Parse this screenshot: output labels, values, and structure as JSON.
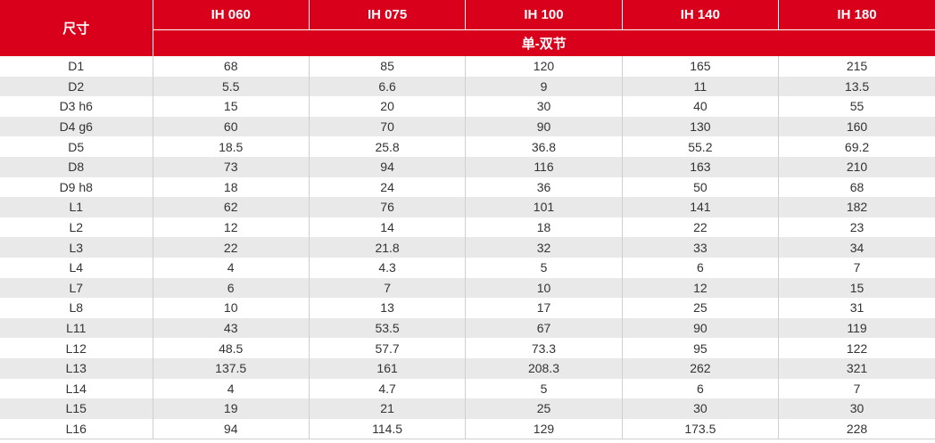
{
  "table": {
    "corner_label": "尺寸",
    "models": [
      "IH 060",
      "IH 075",
      "IH 100",
      "IH 140",
      "IH 180"
    ],
    "subheader": "单-双节",
    "rows": [
      {
        "label": "D1",
        "values": [
          "68",
          "85",
          "120",
          "165",
          "215"
        ]
      },
      {
        "label": "D2",
        "values": [
          "5.5",
          "6.6",
          "9",
          "11",
          "13.5"
        ]
      },
      {
        "label": "D3  h6",
        "values": [
          "15",
          "20",
          "30",
          "40",
          "55"
        ]
      },
      {
        "label": "D4  g6",
        "values": [
          "60",
          "70",
          "90",
          "130",
          "160"
        ]
      },
      {
        "label": "D5",
        "values": [
          "18.5",
          "25.8",
          "36.8",
          "55.2",
          "69.2"
        ]
      },
      {
        "label": "D8",
        "values": [
          "73",
          "94",
          "116",
          "163",
          "210"
        ]
      },
      {
        "label": "D9  h8",
        "values": [
          "18",
          "24",
          "36",
          "50",
          "68"
        ]
      },
      {
        "label": "L1",
        "values": [
          "62",
          "76",
          "101",
          "141",
          "182"
        ]
      },
      {
        "label": "L2",
        "values": [
          "12",
          "14",
          "18",
          "22",
          "23"
        ]
      },
      {
        "label": "L3",
        "values": [
          "22",
          "21.8",
          "32",
          "33",
          "34"
        ]
      },
      {
        "label": "L4",
        "values": [
          "4",
          "4.3",
          "5",
          "6",
          "7"
        ]
      },
      {
        "label": "L7",
        "values": [
          "6",
          "7",
          "10",
          "12",
          "15"
        ]
      },
      {
        "label": "L8",
        "values": [
          "10",
          "13",
          "17",
          "25",
          "31"
        ]
      },
      {
        "label": "L11",
        "values": [
          "43",
          "53.5",
          "67",
          "90",
          "119"
        ]
      },
      {
        "label": "L12",
        "values": [
          "48.5",
          "57.7",
          "73.3",
          "95",
          "122"
        ]
      },
      {
        "label": "L13",
        "values": [
          "137.5",
          "161",
          "208.3",
          "262",
          "321"
        ]
      },
      {
        "label": "L14",
        "values": [
          "4",
          "4.7",
          "5",
          "6",
          "7"
        ]
      },
      {
        "label": "L15",
        "values": [
          "19",
          "21",
          "25",
          "30",
          "30"
        ]
      },
      {
        "label": "L16",
        "values": [
          "94",
          "114.5",
          "129",
          "173.5",
          "228"
        ]
      }
    ]
  },
  "colors": {
    "header_bg": "#d9001b",
    "header_text": "#ffffff",
    "stripe_bg": "#e9e9e9",
    "body_text": "#333333"
  }
}
